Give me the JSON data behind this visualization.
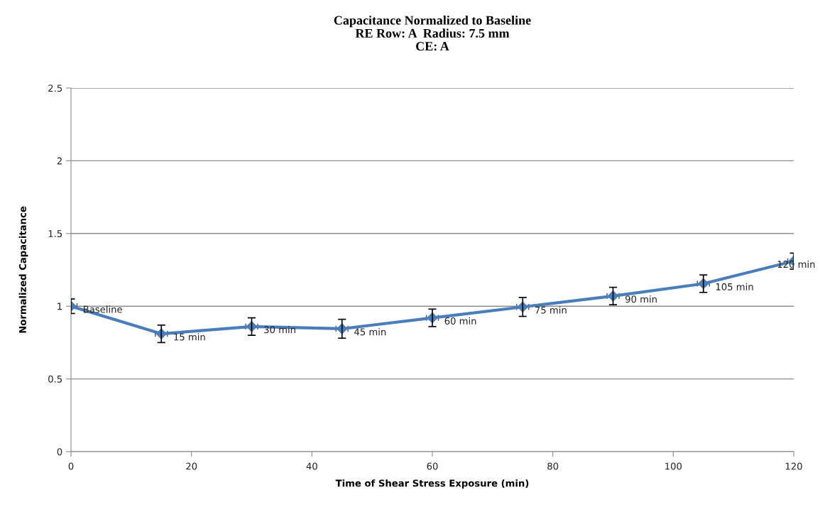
{
  "chart_data": {
    "type": "line",
    "title": "Capacitance Normalized to Baseline\nRE Row: A  Radius: 7.5 mm\nCE: A",
    "xlabel": "Time of Shear Stress Exposure (min)",
    "ylabel": "Normalized Capacitance",
    "x": [
      0,
      15,
      30,
      45,
      60,
      75,
      90,
      105,
      120
    ],
    "series": [
      {
        "color": "#4a7ebb",
        "values": [
          1.0,
          0.81,
          0.86,
          0.845,
          0.92,
          0.995,
          1.07,
          1.155,
          1.31
        ],
        "errors": [
          0.05,
          0.06,
          0.06,
          0.065,
          0.06,
          0.065,
          0.06,
          0.06,
          0.055
        ],
        "xerrors": [
          1,
          1,
          1,
          1,
          1,
          1,
          1,
          1,
          1
        ]
      }
    ],
    "annotations": [
      {
        "text": "Baseline",
        "x": 0,
        "y": 1.0
      },
      {
        "text": "15 min",
        "x": 15,
        "y": 0.81
      },
      {
        "text": "30 min",
        "x": 30,
        "y": 0.86
      },
      {
        "text": "45 min",
        "x": 45,
        "y": 0.845
      },
      {
        "text": "60 min",
        "x": 60,
        "y": 0.92
      },
      {
        "text": "75 min",
        "x": 75,
        "y": 0.995
      },
      {
        "text": "90 min",
        "x": 90,
        "y": 1.07
      },
      {
        "text": "105 min",
        "x": 105,
        "y": 1.155
      },
      {
        "text": "120 min",
        "x": 120,
        "y": 1.31
      }
    ],
    "xlim": [
      0,
      120
    ],
    "xticks": [
      0,
      20,
      40,
      60,
      80,
      100,
      120
    ],
    "ylim": [
      0,
      2.5
    ],
    "yticks": [
      0,
      0.5,
      1,
      1.5,
      2,
      2.5
    ],
    "grid": "y",
    "marker": "diamond",
    "line_style": "solid"
  }
}
